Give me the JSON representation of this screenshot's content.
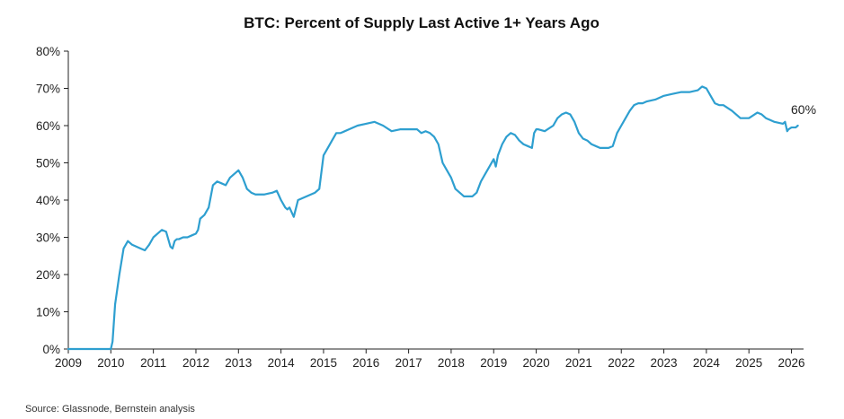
{
  "source": "Source: Glassnode, Bernstein analysis",
  "colors": {
    "series": "#2e9fd0",
    "axis": "#222222"
  },
  "chart_data": {
    "type": "line",
    "title": "BTC: Percent of Supply Last Active 1+ Years Ago",
    "xlabel": "",
    "ylabel": "",
    "xlim": [
      2009,
      2026.2
    ],
    "ylim": [
      0,
      80
    ],
    "x_ticks": [
      2009,
      2010,
      2011,
      2012,
      2013,
      2014,
      2015,
      2016,
      2017,
      2018,
      2019,
      2020,
      2021,
      2022,
      2023,
      2024,
      2025,
      2026
    ],
    "y_ticks": [
      0,
      10,
      20,
      30,
      40,
      50,
      60,
      70,
      80
    ],
    "y_tick_labels": [
      "0%",
      "10%",
      "20%",
      "30%",
      "40%",
      "50%",
      "60%",
      "70%",
      "80%"
    ],
    "grid": false,
    "legend": "none",
    "end_label": "60%",
    "series": [
      {
        "x": [
          2009.0,
          2010.0,
          2010.04,
          2010.1,
          2010.2,
          2010.3,
          2010.4,
          2010.5,
          2010.6,
          2010.7,
          2010.8,
          2010.9,
          2011.0,
          2011.1,
          2011.2,
          2011.3,
          2011.4,
          2011.45,
          2011.5,
          2011.55,
          2011.6,
          2011.7,
          2011.8,
          2011.9,
          2012.0,
          2012.05,
          2012.1,
          2012.2,
          2012.3,
          2012.4,
          2012.5,
          2012.6,
          2012.7,
          2012.8,
          2012.9,
          2013.0,
          2013.1,
          2013.2,
          2013.3,
          2013.4,
          2013.6,
          2013.8,
          2013.9,
          2014.0,
          2014.1,
          2014.15,
          2014.2,
          2014.3,
          2014.4,
          2014.6,
          2014.8,
          2014.85,
          2014.9,
          2015.0,
          2015.1,
          2015.2,
          2015.3,
          2015.4,
          2015.6,
          2015.8,
          2016.0,
          2016.2,
          2016.4,
          2016.6,
          2016.8,
          2017.0,
          2017.2,
          2017.3,
          2017.4,
          2017.5,
          2017.6,
          2017.7,
          2017.8,
          2017.9,
          2018.0,
          2018.1,
          2018.2,
          2018.3,
          2018.4,
          2018.5,
          2018.6,
          2018.7,
          2018.8,
          2018.9,
          2019.0,
          2019.05,
          2019.1,
          2019.2,
          2019.3,
          2019.4,
          2019.5,
          2019.6,
          2019.7,
          2019.8,
          2019.9,
          2019.95,
          2020.0,
          2020.05,
          2020.2,
          2020.4,
          2020.5,
          2020.6,
          2020.7,
          2020.8,
          2020.9,
          2021.0,
          2021.1,
          2021.2,
          2021.3,
          2021.4,
          2021.5,
          2021.6,
          2021.7,
          2021.8,
          2021.9,
          2022.0,
          2022.1,
          2022.2,
          2022.3,
          2022.4,
          2022.5,
          2022.6,
          2022.8,
          2023.0,
          2023.2,
          2023.4,
          2023.6,
          2023.8,
          2023.9,
          2024.0,
          2024.1,
          2024.2,
          2024.3,
          2024.4,
          2024.6,
          2024.8,
          2025.0,
          2025.2,
          2025.3,
          2025.4,
          2025.5,
          2025.6,
          2025.8,
          2025.85,
          2025.9,
          2025.93,
          2026.0,
          2026.1,
          2026.15
        ],
        "y": [
          0,
          0,
          2,
          12,
          20,
          27,
          29,
          28,
          27.5,
          27,
          26.5,
          28,
          30,
          31,
          32,
          31.5,
          27.5,
          27,
          29,
          29.5,
          29.5,
          30,
          30,
          30.5,
          31,
          32,
          35,
          36,
          38,
          44,
          45,
          44.5,
          44,
          46,
          47,
          48,
          46,
          43,
          42,
          41.5,
          41.5,
          42,
          42.5,
          40,
          38,
          37.5,
          38,
          35.5,
          40,
          41,
          42,
          42.5,
          43,
          52,
          54,
          56,
          58,
          58,
          59,
          60,
          60.5,
          61,
          60,
          58.5,
          59,
          59,
          59,
          58,
          58.5,
          58,
          57,
          55,
          50,
          48,
          46,
          43,
          42,
          41,
          41,
          41,
          42,
          45,
          47,
          49,
          51,
          49,
          52,
          55,
          57,
          58,
          57.5,
          56,
          55,
          54.5,
          54,
          58,
          59,
          59,
          58.5,
          60,
          62,
          63,
          63.5,
          63,
          61,
          58,
          56.5,
          56,
          55,
          54.5,
          54,
          54,
          54,
          54.5,
          58,
          60,
          62,
          64,
          65.5,
          66,
          66,
          66.5,
          67,
          68,
          68.5,
          69,
          69,
          69.5,
          70.5,
          70,
          68,
          66,
          65.5,
          65.5,
          64,
          62,
          62,
          63.5,
          63,
          62,
          61.5,
          61,
          60.5,
          61,
          58.5,
          59,
          59.5,
          59.5,
          60
        ]
      }
    ]
  }
}
